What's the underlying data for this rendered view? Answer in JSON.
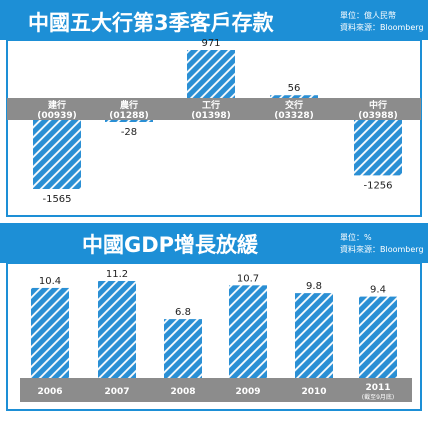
{
  "colors": {
    "header_blue": "#1d8fd6",
    "bar_blue": "#2a8fd4",
    "hatch": "#ffffff",
    "band_gray": "#8c8c8c",
    "label_text": "#222222",
    "white": "#ffffff"
  },
  "charts": [
    {
      "title": "中國五大行第3季客戶存款",
      "unit": "單位：億人民幣",
      "source": "資料來源：Bloomberg"
    },
    {
      "title": "中國GDP增長放緩",
      "unit": "單位：%",
      "source": "資料來源：Bloomberg"
    }
  ],
  "chart_data": [
    {
      "type": "bar",
      "title": "中國五大行第3季客戶存款",
      "categories": [
        "建行\n(00939)",
        "農行\n(01288)",
        "工行\n(01398)",
        "交行\n(03328)",
        "中行\n(03988)"
      ],
      "category_names": [
        "建行",
        "農行",
        "工行",
        "交行",
        "中行"
      ],
      "category_codes": [
        "(00939)",
        "(01288)",
        "(01398)",
        "(03328)",
        "(03988)"
      ],
      "values": [
        -1565,
        -28,
        971,
        56,
        -1256
      ],
      "value_labels": [
        "-1565",
        "-28",
        "971",
        "56",
        "-1256"
      ],
      "ylim": [
        -1700,
        1100
      ],
      "grid": false,
      "legend": "none"
    },
    {
      "type": "bar",
      "title": "中國GDP增長放緩",
      "categories": [
        "2006",
        "2007",
        "2008",
        "2009",
        "2010",
        "2011"
      ],
      "category_notes": [
        "",
        "",
        "",
        "",
        "",
        "(截至9月底)"
      ],
      "values": [
        10.4,
        11.2,
        6.8,
        10.7,
        9.8,
        9.4
      ],
      "value_labels": [
        "10.4",
        "11.2",
        "6.8",
        "10.7",
        "9.8",
        "9.4"
      ],
      "ylim": [
        0,
        13
      ],
      "grid": false,
      "legend": "none"
    }
  ]
}
